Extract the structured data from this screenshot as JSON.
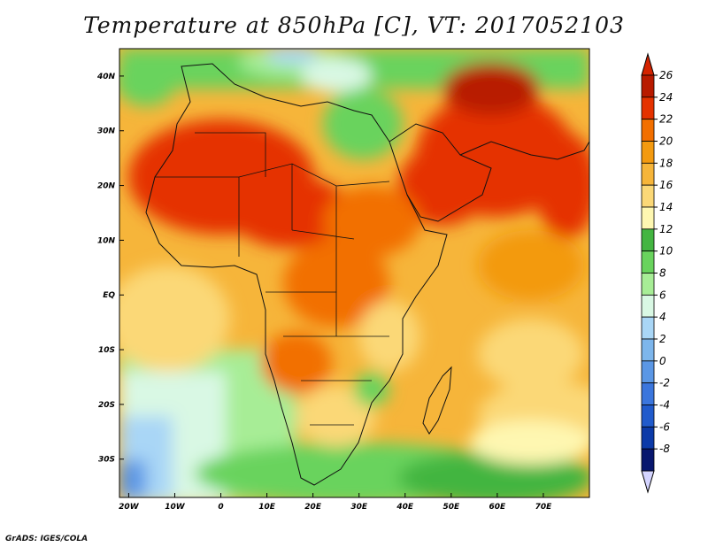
{
  "title": "Temperature at 850hPa [C], VT: 2017052103",
  "credit": "GrADS: IGES/COLA",
  "map": {
    "lon_range": [
      -22,
      80
    ],
    "lat_range": [
      -37,
      45
    ],
    "lat_ticks": [
      {
        "value": 40,
        "label": "40N"
      },
      {
        "value": 30,
        "label": "30N"
      },
      {
        "value": 20,
        "label": "20N"
      },
      {
        "value": 10,
        "label": "10N"
      },
      {
        "value": 0,
        "label": "EQ"
      },
      {
        "value": -10,
        "label": "10S"
      },
      {
        "value": -20,
        "label": "20S"
      },
      {
        "value": -30,
        "label": "30S"
      }
    ],
    "lon_ticks": [
      {
        "value": -20,
        "label": "20W"
      },
      {
        "value": -10,
        "label": "10W"
      },
      {
        "value": 0,
        "label": "0"
      },
      {
        "value": 10,
        "label": "10E"
      },
      {
        "value": 20,
        "label": "20E"
      },
      {
        "value": 30,
        "label": "30E"
      },
      {
        "value": 40,
        "label": "40E"
      },
      {
        "value": 50,
        "label": "50E"
      },
      {
        "value": 60,
        "label": "60E"
      },
      {
        "value": 70,
        "label": "70E"
      }
    ]
  },
  "colorbar": {
    "levels": [
      "26",
      "24",
      "22",
      "20",
      "18",
      "16",
      "14",
      "12",
      "10",
      "8",
      "6",
      "4",
      "2",
      "0",
      "-2",
      "-4",
      "-6",
      "-8"
    ],
    "colors": [
      "#b81a00",
      "#e53200",
      "#f26f00",
      "#f39a10",
      "#f6b53a",
      "#fbd877",
      "#fef7b1",
      "#43b541",
      "#69d35d",
      "#a7ed96",
      "#d9f8e4",
      "#a9d6f6",
      "#7db6ec",
      "#5b97e5",
      "#3b76dd",
      "#215bcc",
      "#0c3aa8",
      "#08176e"
    ],
    "top_arrow_color": "#d42300",
    "bottom_arrow_color": "#d4d4ff"
  }
}
